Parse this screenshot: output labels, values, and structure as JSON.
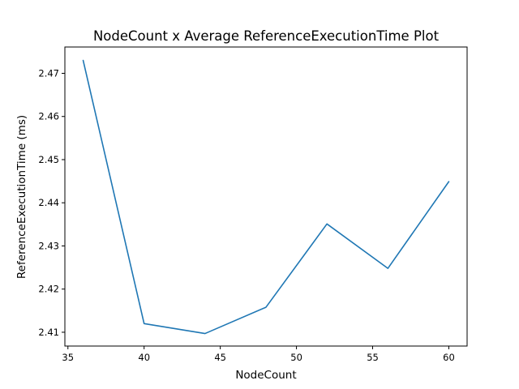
{
  "chart_data": {
    "type": "line",
    "title": "NodeCount x Average ReferenceExecutionTime Plot",
    "xlabel": "NodeCount",
    "ylabel": "ReferenceExecutionTime (ms)",
    "xlim": [
      34.8,
      61.2
    ],
    "ylim": [
      2.4068,
      2.4761
    ],
    "x_ticks": [
      35,
      40,
      45,
      50,
      55,
      60
    ],
    "y_ticks": [
      2.41,
      2.42,
      2.43,
      2.44,
      2.45,
      2.46,
      2.47
    ],
    "grid": false,
    "series": [
      {
        "color": "#1f77b4",
        "x": [
          36,
          40,
          44,
          48,
          52,
          56,
          60
        ],
        "y": [
          2.473,
          2.412,
          2.4097,
          2.4158,
          2.4351,
          2.4248,
          2.4449
        ]
      }
    ]
  }
}
